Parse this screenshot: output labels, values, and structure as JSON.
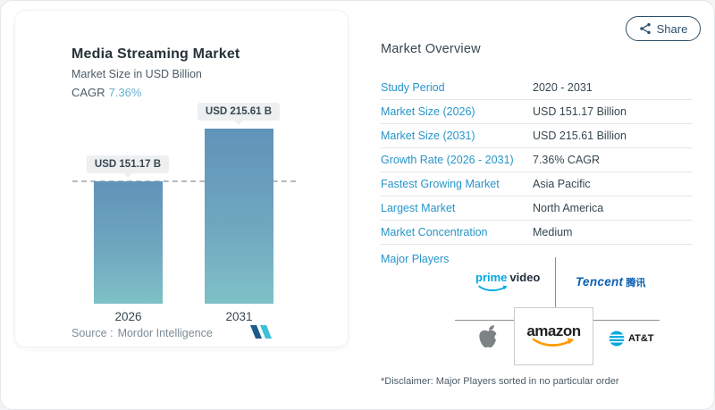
{
  "share": {
    "label": "Share"
  },
  "left_card": {
    "title": "Media Streaming Market",
    "subtitle": "Market Size in USD Billion",
    "cagr_label": "CAGR",
    "cagr_value": "7.36%",
    "source_label": "Source :",
    "source_value": "Mordor Intelligence"
  },
  "chart_data": {
    "type": "bar",
    "title": "Media Streaming Market",
    "ylabel": "Market Size in USD Billion",
    "categories": [
      "2026",
      "2031"
    ],
    "values": [
      151.17,
      215.61
    ],
    "bar_labels": [
      "USD 151.17 B",
      "USD 215.61 B"
    ],
    "ylim": [
      0,
      240
    ],
    "grid": "dashed horizontal reference line at 151.17",
    "legend": "none",
    "bar_color_top": "#6093b9",
    "bar_color_bottom": "#7fc1c7"
  },
  "overview": {
    "heading": "Market Overview",
    "rows": [
      {
        "label": "Study Period",
        "value": "2020 - 2031"
      },
      {
        "label": "Market Size (2026)",
        "value": "USD 151.17 Billion"
      },
      {
        "label": "Market Size (2031)",
        "value": "USD 215.61 Billion"
      },
      {
        "label": "Growth Rate (2026 - 2031)",
        "value": "7.36% CAGR"
      },
      {
        "label": "Fastest Growing Market",
        "value": "Asia Pacific"
      },
      {
        "label": "Largest Market",
        "value": "North America"
      },
      {
        "label": "Market Concentration",
        "value": "Medium"
      }
    ],
    "major_players_label": "Major Players",
    "major_players": [
      "Prime Video",
      "Tencent",
      "Apple",
      "Amazon",
      "AT&T"
    ],
    "disclaimer": "*Disclaimer: Major Players sorted in no particular order"
  },
  "logos": {
    "prime_video": {
      "part1": "prime",
      "part2": "video"
    },
    "tencent": {
      "latin": "Tencent",
      "cjk": "腾讯"
    },
    "amazon": {
      "text": "amazon"
    },
    "att": {
      "text": "AT&T"
    }
  },
  "colors": {
    "accent_label_blue": "#2795c9",
    "cagr_value_blue": "#68aed3",
    "share_button": "#2e4f68",
    "bar_gradient_top": "#6093b9",
    "bar_gradient_bottom": "#7fc1c7",
    "prime_blue": "#00a8e1",
    "tencent_blue": "#0b5fb5",
    "amazon_orange": "#ff9900",
    "att_blue": "#00a8e0"
  }
}
